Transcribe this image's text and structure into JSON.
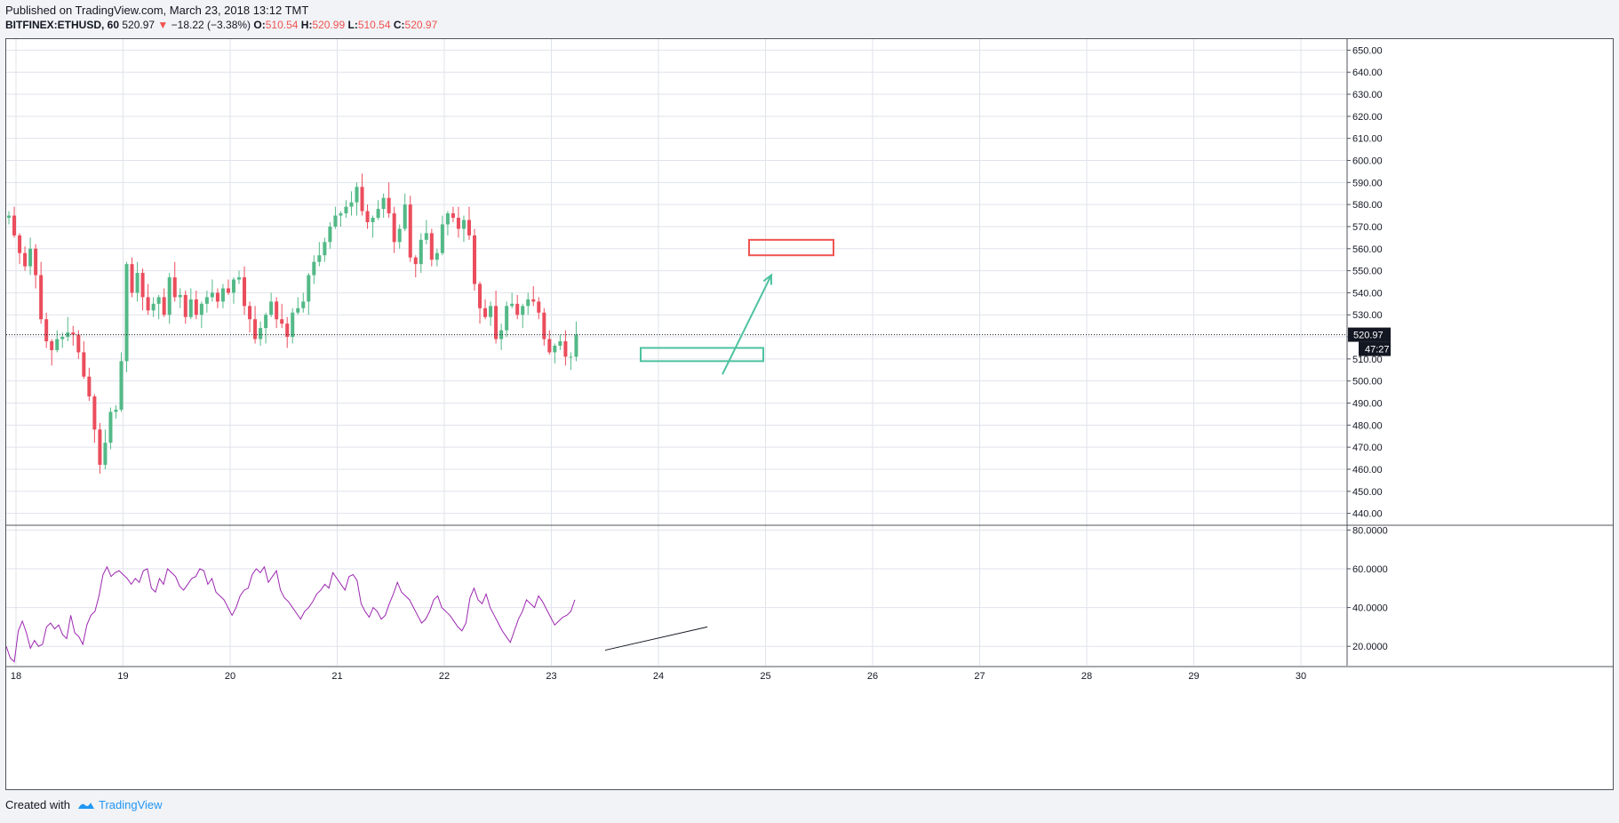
{
  "header": {
    "published": "Published on TradingView.com, March 23, 2018 13:12 TMT",
    "symbol": "BITFINEX:ETHUSD, 60",
    "last": "520.97",
    "change_arrow": "▼",
    "change": "−18.22 (−3.38%)",
    "o_label": "O:",
    "o": "510.54",
    "h_label": "H:",
    "h": "520.99",
    "l_label": "L:",
    "l": "510.54",
    "c_label": "C:",
    "c": "520.97"
  },
  "footer": {
    "created": "Created with",
    "brand": "TradingView"
  },
  "colors": {
    "up": "#53b987",
    "down": "#eb4d5c",
    "rsi": "#9c27b0",
    "grid": "#e0e3eb",
    "axis": "#50535e",
    "zone_sell": "#ef5350",
    "zone_buy": "#4dc2a0"
  },
  "chart_data": {
    "type": "candlestick",
    "y_axis": {
      "min": 435,
      "max": 655,
      "ticks": [
        "650.00",
        "640.00",
        "630.00",
        "620.00",
        "610.00",
        "600.00",
        "590.00",
        "580.00",
        "570.00",
        "560.00",
        "550.00",
        "540.00",
        "530.00",
        "520.00",
        "510.00",
        "500.00",
        "490.00",
        "480.00",
        "470.00",
        "460.00",
        "450.00",
        "440.00"
      ]
    },
    "x_axis": {
      "day_ticks": [
        "18",
        "19",
        "20",
        "21",
        "22",
        "23",
        "24",
        "25",
        "26",
        "27",
        "28",
        "29",
        "30"
      ]
    },
    "last_price_label": "520.97",
    "countdown_label": "47:27",
    "series": [
      {
        "name": "ETHUSD",
        "close": [
          575,
          566,
          558,
          552,
          560,
          548,
          528,
          518,
          514,
          519,
          520,
          522,
          521,
          513,
          502,
          493,
          478,
          462,
          472,
          486,
          487,
          509,
          553,
          540,
          549,
          538,
          532,
          535,
          538,
          530,
          547,
          538,
          539,
          529,
          537,
          530,
          535,
          538,
          540,
          536,
          542,
          540,
          546,
          547,
          534,
          528,
          519,
          524,
          530,
          536,
          528,
          526,
          520,
          531,
          533,
          536,
          548,
          554,
          557,
          563,
          570,
          575,
          576,
          579,
          581,
          588,
          577,
          572,
          574,
          578,
          583,
          576,
          563,
          569,
          580,
          556,
          553,
          564,
          567,
          555,
          558,
          571,
          576,
          574,
          569,
          573,
          566,
          544,
          533,
          529,
          534,
          519,
          523,
          534,
          535,
          530,
          534,
          537,
          536,
          531,
          519,
          513,
          516,
          518,
          511,
          511,
          521
        ]
      }
    ],
    "rsi": {
      "y_min": 10,
      "y_max": 82,
      "ticks": [
        "80.0000",
        "60.0000",
        "40.0000",
        "20.0000"
      ]
    },
    "annotations": [
      {
        "type": "rectangle",
        "color": "sell",
        "y_range": [
          557,
          564
        ]
      },
      {
        "type": "rectangle",
        "color": "buy",
        "y_range": [
          509,
          515
        ]
      },
      {
        "type": "arrow",
        "color": "buy",
        "y_range": [
          503,
          548
        ]
      },
      {
        "type": "trendline",
        "pane": "rsi",
        "y_range": [
          18,
          30
        ]
      }
    ]
  }
}
